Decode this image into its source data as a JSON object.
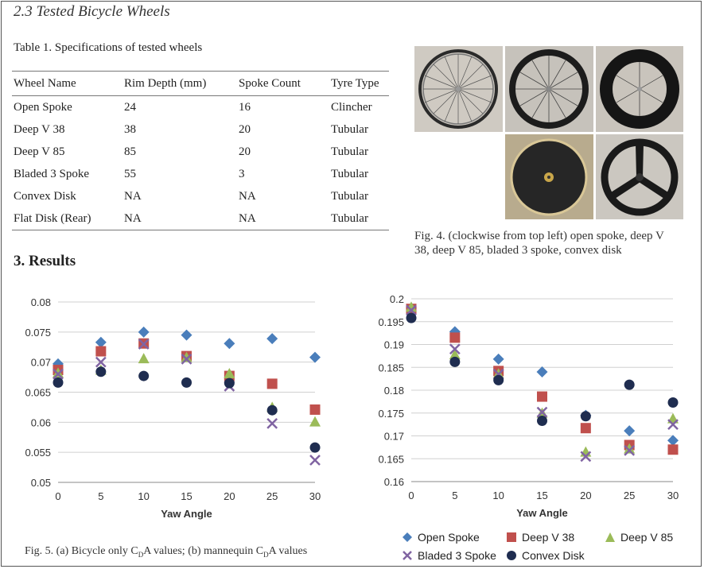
{
  "section_title": "2.3 Tested Bicycle Wheels",
  "table_caption": "Table 1. Specifications of tested wheels",
  "table": {
    "headers": [
      "Wheel Name",
      "Rim Depth (mm)",
      "Spoke Count",
      "Tyre Type"
    ],
    "rows": [
      [
        "Open Spoke",
        "24",
        "16",
        "Clincher"
      ],
      [
        "Deep V 38",
        "38",
        "20",
        "Tubular"
      ],
      [
        "Deep V 85",
        "85",
        "20",
        "Tubular"
      ],
      [
        "Bladed 3 Spoke",
        "55",
        "3",
        "Tubular"
      ],
      [
        "Convex Disk",
        "NA",
        "NA",
        "Tubular"
      ],
      [
        "Flat Disk (Rear)",
        "NA",
        "NA",
        "Tubular"
      ]
    ]
  },
  "fig4_caption": "Fig. 4. (clockwise from top left) open spoke, deep V 38, deep V 85, bladed 3 spoke, convex disk",
  "results_heading": "3. Results",
  "fig5_caption": {
    "prefix": "Fig. 5. (a) Bicycle only C",
    "sub1": "D",
    "mid": "A values; (b) mannequin C",
    "sub2": "D",
    "suffix": "A values"
  },
  "legend": [
    {
      "name": "Open Spoke",
      "color": "#4A7EBB",
      "marker": "diamond"
    },
    {
      "name": "Deep V 38",
      "color": "#C0504D",
      "marker": "square"
    },
    {
      "name": "Deep V 85",
      "color": "#9BBB59",
      "marker": "triangle"
    },
    {
      "name": "Bladed 3 Spoke",
      "color": "#8064A2",
      "marker": "x"
    },
    {
      "name": "Convex Disk",
      "color": "#1F2D50",
      "marker": "circle"
    }
  ],
  "chart_data": [
    {
      "type": "scatter",
      "title": "",
      "xlabel": "Yaw Angle",
      "ylabel": "",
      "x": [
        0,
        5,
        10,
        15,
        20,
        25,
        30
      ],
      "xlim": [
        0,
        30
      ],
      "ylim": [
        0.05,
        0.08
      ],
      "yticks": [
        "0.05",
        "0.055",
        "0.06",
        "0.065",
        "0.07",
        "0.075",
        "0.08"
      ],
      "xticks": [
        "0",
        "5",
        "10",
        "15",
        "20",
        "25",
        "30"
      ],
      "grid": true,
      "series": [
        {
          "name": "Open Spoke",
          "values": [
            0.0697,
            0.0733,
            0.075,
            0.0745,
            0.0731,
            0.0739,
            0.0708
          ]
        },
        {
          "name": "Deep V 38",
          "values": [
            0.0687,
            0.0718,
            0.0731,
            0.071,
            0.0677,
            0.0664,
            0.0621
          ]
        },
        {
          "name": "Deep V 85",
          "values": [
            0.0682,
            0.0687,
            0.0706,
            0.0708,
            0.0681,
            0.0625,
            0.0601
          ]
        },
        {
          "name": "Bladed 3 Spoke",
          "values": [
            0.068,
            0.07,
            0.073,
            0.0705,
            0.066,
            0.0598,
            0.0537
          ]
        },
        {
          "name": "Convex Disk",
          "values": [
            0.0666,
            0.0684,
            0.0677,
            0.0666,
            0.0665,
            0.062,
            0.0558
          ]
        }
      ]
    },
    {
      "type": "scatter",
      "title": "",
      "xlabel": "Yaw Angle",
      "ylabel": "",
      "x": [
        0,
        5,
        10,
        15,
        20,
        25,
        30
      ],
      "xlim": [
        0,
        30
      ],
      "ylim": [
        0.16,
        0.2
      ],
      "yticks": [
        "0.16",
        "0.165",
        "0.17",
        "0.175",
        "0.18",
        "0.185",
        "0.19",
        "0.195",
        "0.2"
      ],
      "xticks": [
        "0",
        "5",
        "10",
        "15",
        "20",
        "25",
        "30"
      ],
      "grid": true,
      "series": [
        {
          "name": "Open Spoke",
          "values": [
            0.198,
            0.1928,
            0.1868,
            0.184,
            0.1745,
            0.1711,
            0.169
          ]
        },
        {
          "name": "Deep V 38",
          "values": [
            0.1978,
            0.1915,
            0.1842,
            0.1786,
            0.1717,
            0.168,
            0.167
          ]
        },
        {
          "name": "Deep V 85",
          "values": [
            0.1982,
            0.1878,
            0.1836,
            0.175,
            0.1665,
            0.1672,
            0.1738
          ]
        },
        {
          "name": "Bladed 3 Spoke",
          "values": [
            0.1975,
            0.189,
            0.1835,
            0.1752,
            0.1655,
            0.1668,
            0.1725
          ]
        },
        {
          "name": "Convex Disk",
          "values": [
            0.1958,
            0.1862,
            0.1822,
            0.1733,
            0.1743,
            0.1812,
            0.1773
          ]
        }
      ]
    }
  ]
}
